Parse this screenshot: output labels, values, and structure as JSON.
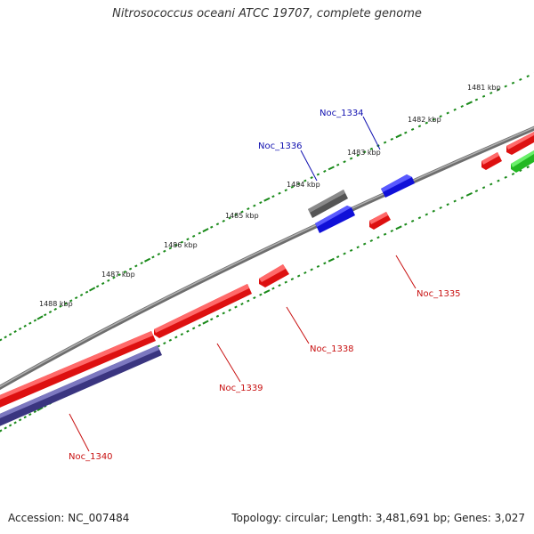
{
  "header": {
    "title": "Nitrosococcus oceani ATCC 19707, complete genome"
  },
  "footer": {
    "accession": "Accession: NC_007484",
    "summary": "Topology: circular; Length: 3,481,691 bp; Genes: 3,027"
  },
  "colors": {
    "backbone": "#808080",
    "ticks": "#1a8a1a",
    "tick_label": "#222222",
    "forward_gene_label": "#1010b0",
    "reverse_gene_label": "#c81010",
    "red_gene": "#ff1010",
    "blue_gene": "#1414ee",
    "gray_gene": "#666666",
    "purple_gene": "#4a4690",
    "green_gene": "#30d030"
  },
  "kbp_labels": [
    "1481 kbp",
    "1482 kbp",
    "1483 kbp",
    "1484 kbp",
    "1485 kbp",
    "1486 kbp",
    "1487 kbp",
    "1488 kbp"
  ],
  "gene_labels": [
    {
      "name": "Noc_1334",
      "strand": "forward"
    },
    {
      "name": "Noc_1336",
      "strand": "forward"
    },
    {
      "name": "Noc_1335",
      "strand": "reverse"
    },
    {
      "name": "Noc_1338",
      "strand": "reverse"
    },
    {
      "name": "Noc_1339",
      "strand": "reverse"
    },
    {
      "name": "Noc_1340",
      "strand": "reverse"
    }
  ]
}
